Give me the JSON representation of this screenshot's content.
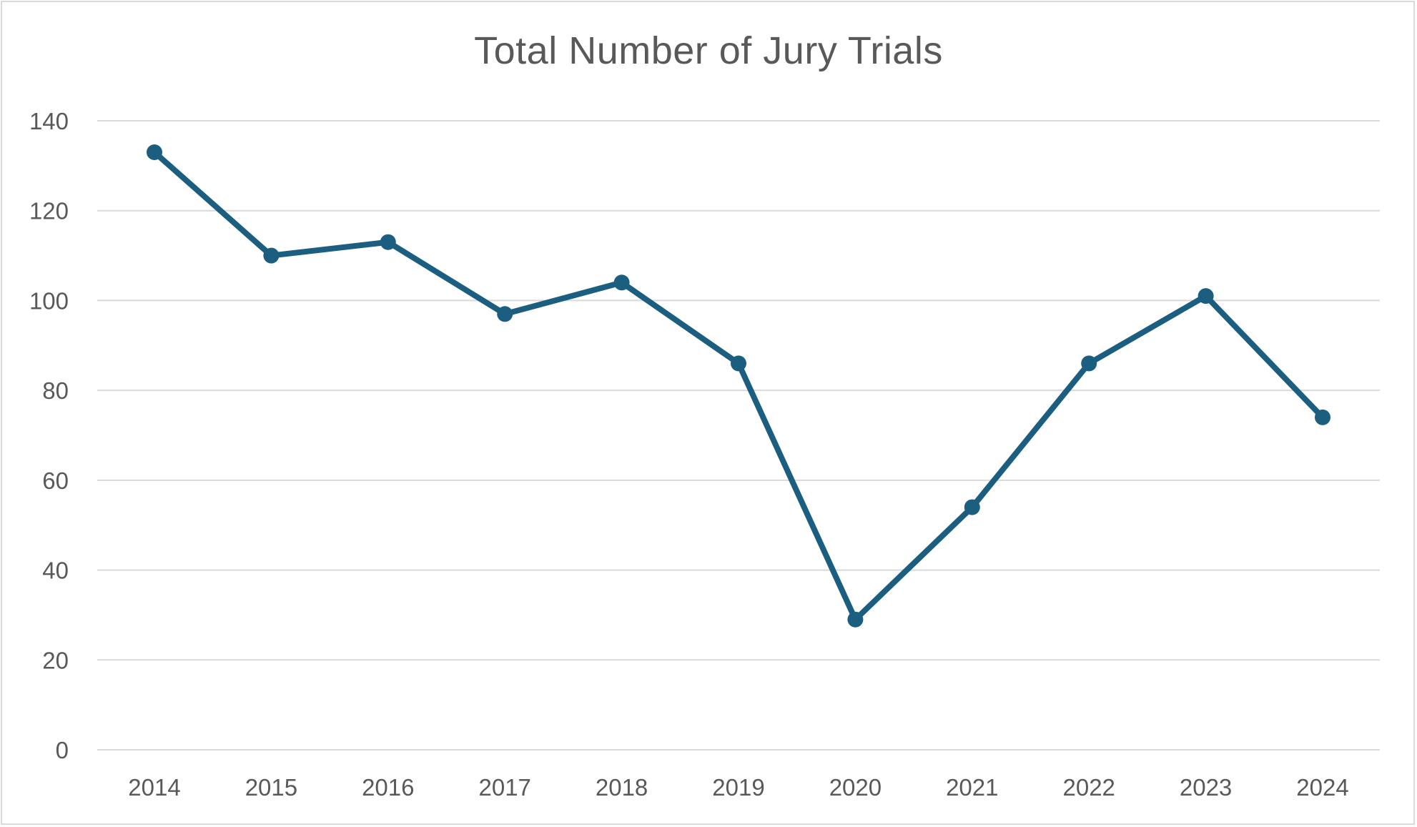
{
  "chart_data": {
    "type": "line",
    "title": "Total Number of Jury Trials",
    "xlabel": "",
    "ylabel": "",
    "categories": [
      "2014",
      "2015",
      "2016",
      "2017",
      "2018",
      "2019",
      "2020",
      "2021",
      "2022",
      "2023",
      "2024"
    ],
    "series": [
      {
        "values": [
          133,
          110,
          113,
          97,
          104,
          86,
          29,
          54,
          86,
          101,
          74
        ],
        "color": "#1b5e80"
      }
    ],
    "ylim": [
      0,
      140
    ],
    "yticks": [
      "0",
      "20",
      "40",
      "60",
      "80",
      "100",
      "120",
      "140"
    ],
    "grid": true,
    "legend": "none",
    "markers": true
  }
}
